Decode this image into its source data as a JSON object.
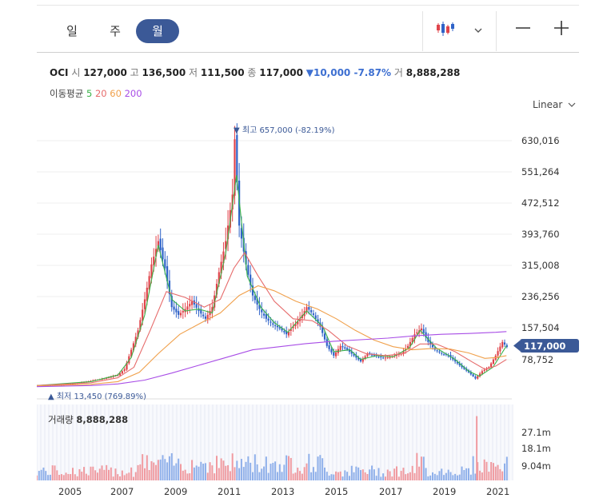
{
  "periods": [
    "일",
    "주",
    "월"
  ],
  "active_period": "월",
  "icons": {
    "candle": "candlestick-icon",
    "dropdown": "chevron-down-icon",
    "zoom_out": "minus-icon",
    "zoom_in": "plus-icon"
  },
  "quote": {
    "symbol": "OCI",
    "open_label": "시",
    "open": "127,000",
    "high_label": "고",
    "high": "136,500",
    "low_label": "저",
    "low": "111,500",
    "close_label": "종",
    "close": "117,000",
    "change": "▼10,000 -7.87%",
    "volume_label": "거",
    "volume": "8,888,288"
  },
  "moving_average": {
    "label": "이동평균",
    "periods": [
      "5",
      "20",
      "60",
      "200"
    ],
    "colors": [
      "#3bb34a",
      "#e66b6b",
      "#f0a04b",
      "#a84de6"
    ]
  },
  "scale_label": "Linear",
  "price_axis": [
    "630,016",
    "551,264",
    "472,512",
    "393,760",
    "315,008",
    "236,256",
    "157,504",
    "78,752"
  ],
  "current_price": "117,000",
  "max_marker": "▼ 최고 657,000 (-82.19%)",
  "min_marker": "▲ 최저 13,450 (769.89%)",
  "volume_panel": {
    "label": "거래량",
    "value": "8,888,288",
    "axis": [
      "27.1m",
      "18.1m",
      "9.04m"
    ]
  },
  "time_axis": [
    "2005",
    "2007",
    "2009",
    "2011",
    "2013",
    "2015",
    "2017",
    "2019",
    "2021"
  ],
  "colors": {
    "accent": "#3b5997",
    "up": "#e0444b",
    "down": "#2f63c8",
    "ma200": "#a84de6"
  },
  "chart_data": {
    "type": "candlestick",
    "price_range": [
      0,
      690000
    ],
    "volume_range": [
      0,
      32000000
    ],
    "monthly_close": [
      [
        2004.0,
        18000
      ],
      [
        2004.5,
        17500
      ],
      [
        2005.0,
        20000
      ],
      [
        2005.5,
        24000
      ],
      [
        2006.0,
        30000
      ],
      [
        2006.5,
        36000
      ],
      [
        2007.0,
        45000
      ],
      [
        2007.25,
        60000
      ],
      [
        2007.5,
        110000
      ],
      [
        2007.75,
        160000
      ],
      [
        2008.0,
        240000
      ],
      [
        2008.25,
        330000
      ],
      [
        2008.5,
        390000
      ],
      [
        2008.75,
        320000
      ],
      [
        2009.0,
        220000
      ],
      [
        2009.25,
        200000
      ],
      [
        2009.5,
        215000
      ],
      [
        2009.75,
        235000
      ],
      [
        2010.0,
        210000
      ],
      [
        2010.25,
        190000
      ],
      [
        2010.5,
        220000
      ],
      [
        2010.75,
        310000
      ],
      [
        2011.0,
        390000
      ],
      [
        2011.25,
        510000
      ],
      [
        2011.33,
        657000
      ],
      [
        2011.5,
        430000
      ],
      [
        2011.75,
        330000
      ],
      [
        2012.0,
        250000
      ],
      [
        2012.25,
        215000
      ],
      [
        2012.5,
        190000
      ],
      [
        2012.75,
        175000
      ],
      [
        2013.0,
        165000
      ],
      [
        2013.25,
        150000
      ],
      [
        2013.5,
        170000
      ],
      [
        2013.75,
        190000
      ],
      [
        2014.0,
        220000
      ],
      [
        2014.25,
        200000
      ],
      [
        2014.5,
        170000
      ],
      [
        2014.75,
        120000
      ],
      [
        2015.0,
        95000
      ],
      [
        2015.25,
        120000
      ],
      [
        2015.5,
        110000
      ],
      [
        2015.75,
        95000
      ],
      [
        2016.0,
        80000
      ],
      [
        2016.25,
        100000
      ],
      [
        2016.5,
        95000
      ],
      [
        2016.75,
        90000
      ],
      [
        2017.0,
        90000
      ],
      [
        2017.25,
        95000
      ],
      [
        2017.5,
        100000
      ],
      [
        2017.75,
        120000
      ],
      [
        2018.0,
        150000
      ],
      [
        2018.25,
        165000
      ],
      [
        2018.5,
        130000
      ],
      [
        2018.75,
        110000
      ],
      [
        2019.0,
        100000
      ],
      [
        2019.25,
        95000
      ],
      [
        2019.5,
        80000
      ],
      [
        2019.75,
        65000
      ],
      [
        2020.0,
        52000
      ],
      [
        2020.25,
        36000
      ],
      [
        2020.5,
        55000
      ],
      [
        2020.75,
        65000
      ],
      [
        2021.0,
        95000
      ],
      [
        2021.25,
        130000
      ],
      [
        2021.42,
        117000
      ]
    ],
    "series": [
      {
        "name": "5",
        "values": [
          [
            2004,
            18000
          ],
          [
            2006,
            28000
          ],
          [
            2007,
            45000
          ],
          [
            2007.5,
            90000
          ],
          [
            2008,
            200000
          ],
          [
            2008.5,
            380000
          ],
          [
            2009,
            240000
          ],
          [
            2009.5,
            210000
          ],
          [
            2010,
            215000
          ],
          [
            2010.5,
            205000
          ],
          [
            2011,
            360000
          ],
          [
            2011.4,
            560000
          ],
          [
            2011.8,
            300000
          ],
          [
            2012.3,
            220000
          ],
          [
            2012.8,
            180000
          ],
          [
            2013.3,
            155000
          ],
          [
            2014,
            210000
          ],
          [
            2014.6,
            170000
          ],
          [
            2015,
            105000
          ],
          [
            2015.6,
            110000
          ],
          [
            2016,
            85000
          ],
          [
            2016.6,
            95000
          ],
          [
            2017.2,
            92000
          ],
          [
            2017.8,
            115000
          ],
          [
            2018.2,
            160000
          ],
          [
            2018.8,
            115000
          ],
          [
            2019.5,
            85000
          ],
          [
            2020,
            55000
          ],
          [
            2020.4,
            42000
          ],
          [
            2020.9,
            65000
          ],
          [
            2021.4,
            120000
          ]
        ]
      },
      {
        "name": "20",
        "values": [
          [
            2004,
            18000
          ],
          [
            2006,
            25000
          ],
          [
            2007,
            38000
          ],
          [
            2007.6,
            65000
          ],
          [
            2008.2,
            160000
          ],
          [
            2008.8,
            260000
          ],
          [
            2009.5,
            245000
          ],
          [
            2010.2,
            220000
          ],
          [
            2010.8,
            240000
          ],
          [
            2011.3,
            320000
          ],
          [
            2011.7,
            360000
          ],
          [
            2012.2,
            300000
          ],
          [
            2012.8,
            235000
          ],
          [
            2013.5,
            190000
          ],
          [
            2014.2,
            185000
          ],
          [
            2014.8,
            160000
          ],
          [
            2015.5,
            120000
          ],
          [
            2016.2,
            100000
          ],
          [
            2016.9,
            95000
          ],
          [
            2017.6,
            100000
          ],
          [
            2018.2,
            125000
          ],
          [
            2018.8,
            125000
          ],
          [
            2019.5,
            105000
          ],
          [
            2020.1,
            80000
          ],
          [
            2020.6,
            60000
          ],
          [
            2021,
            68000
          ],
          [
            2021.4,
            85000
          ]
        ]
      },
      {
        "name": "60",
        "values": [
          [
            2004,
            17000
          ],
          [
            2006,
            21000
          ],
          [
            2007,
            28000
          ],
          [
            2007.8,
            52000
          ],
          [
            2008.5,
            100000
          ],
          [
            2009.3,
            150000
          ],
          [
            2010.1,
            180000
          ],
          [
            2010.8,
            205000
          ],
          [
            2011.5,
            250000
          ],
          [
            2012.2,
            275000
          ],
          [
            2012.8,
            262000
          ],
          [
            2013.6,
            235000
          ],
          [
            2014.4,
            215000
          ],
          [
            2015.1,
            190000
          ],
          [
            2015.8,
            160000
          ],
          [
            2016.5,
            135000
          ],
          [
            2017.2,
            118000
          ],
          [
            2017.9,
            110000
          ],
          [
            2018.6,
            113000
          ],
          [
            2019.3,
            112000
          ],
          [
            2020,
            102000
          ],
          [
            2020.6,
            88000
          ],
          [
            2021,
            90000
          ],
          [
            2021.4,
            95000
          ]
        ]
      },
      {
        "name": "200",
        "values": [
          [
            2004,
            15000
          ],
          [
            2006,
            18000
          ],
          [
            2007,
            22000
          ],
          [
            2008,
            32000
          ],
          [
            2009,
            50000
          ],
          [
            2010,
            70000
          ],
          [
            2011,
            90000
          ],
          [
            2012,
            110000
          ],
          [
            2013,
            118000
          ],
          [
            2014,
            126000
          ],
          [
            2015,
            132000
          ],
          [
            2016,
            136000
          ],
          [
            2017,
            140000
          ],
          [
            2018,
            146000
          ],
          [
            2019,
            150000
          ],
          [
            2020,
            152000
          ],
          [
            2021,
            155000
          ],
          [
            2021.4,
            157000
          ]
        ]
      }
    ]
  }
}
